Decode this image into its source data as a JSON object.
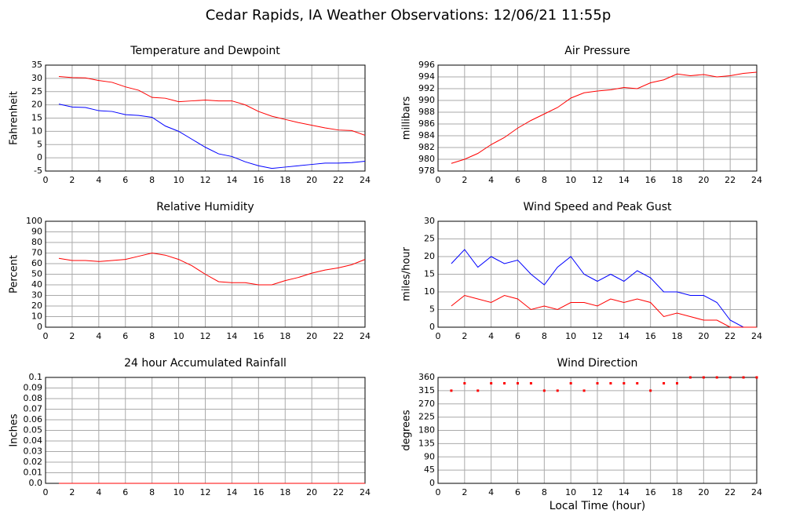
{
  "title": "Cedar Rapids, IA Weather Observations: 12/06/21 11:55p",
  "chart_data": [
    {
      "type": "line",
      "title": "Temperature and Dewpoint",
      "y_label": "Fahrenheit",
      "x": [
        1,
        2,
        3,
        4,
        5,
        6,
        7,
        8,
        9,
        10,
        11,
        12,
        13,
        14,
        15,
        16,
        17,
        18,
        19,
        20,
        21,
        22,
        23,
        24
      ],
      "series": [
        {
          "color": "#ff0000",
          "values": [
            30.7,
            30.3,
            30.2,
            29.2,
            28.5,
            26.8,
            25.5,
            22.8,
            22.5,
            21.2,
            21.5,
            21.8,
            21.5,
            21.5,
            20.0,
            17.5,
            15.7,
            14.5,
            13.3,
            12.3,
            11.3,
            10.5,
            10.3,
            8.5
          ]
        },
        {
          "color": "#0000ff",
          "values": [
            20.3,
            19.2,
            19.0,
            17.8,
            17.5,
            16.3,
            16.0,
            15.3,
            12.0,
            10.0,
            7.0,
            4.0,
            1.5,
            0.5,
            -1.5,
            -3.0,
            -4.0,
            -3.5,
            -3.0,
            -2.5,
            -2.0,
            -2.0,
            -1.8,
            -1.3
          ]
        }
      ],
      "xlim": [
        0,
        24
      ],
      "xticks": [
        0,
        2,
        4,
        6,
        8,
        10,
        12,
        14,
        16,
        18,
        20,
        22,
        24
      ],
      "ylim": [
        -5,
        35
      ],
      "yticks": [
        -5,
        0,
        5,
        10,
        15,
        20,
        25,
        30,
        35
      ],
      "grid": true
    },
    {
      "type": "line",
      "title": "Air Pressure",
      "y_label": "millibars",
      "x": [
        1,
        2,
        3,
        4,
        5,
        6,
        7,
        8,
        9,
        10,
        11,
        12,
        13,
        14,
        15,
        16,
        17,
        18,
        19,
        20,
        21,
        22,
        23,
        24
      ],
      "series": [
        {
          "color": "#ff0000",
          "values": [
            979.3,
            980.0,
            981.0,
            982.5,
            983.7,
            985.3,
            986.6,
            987.7,
            988.8,
            990.4,
            991.3,
            991.6,
            991.8,
            992.2,
            992.0,
            993.0,
            993.5,
            994.5,
            994.2,
            994.4,
            994.0,
            994.2,
            994.6,
            994.8
          ]
        }
      ],
      "xlim": [
        0,
        24
      ],
      "xticks": [
        0,
        2,
        4,
        6,
        8,
        10,
        12,
        14,
        16,
        18,
        20,
        22,
        24
      ],
      "ylim": [
        978,
        996
      ],
      "yticks": [
        978,
        980,
        982,
        984,
        986,
        988,
        990,
        992,
        994,
        996
      ],
      "grid": true
    },
    {
      "type": "line",
      "title": "Relative Humidity",
      "y_label": "Percent",
      "x": [
        1,
        2,
        3,
        4,
        5,
        6,
        7,
        8,
        9,
        10,
        11,
        12,
        13,
        14,
        15,
        16,
        17,
        18,
        19,
        20,
        21,
        22,
        23,
        24
      ],
      "series": [
        {
          "color": "#ff0000",
          "values": [
            65,
            63,
            63,
            62,
            63,
            64,
            67,
            70,
            68,
            64,
            58,
            50,
            43,
            42,
            42,
            40,
            40,
            44,
            47,
            51,
            54,
            56,
            59,
            64
          ]
        }
      ],
      "xlim": [
        0,
        24
      ],
      "xticks": [
        0,
        2,
        4,
        6,
        8,
        10,
        12,
        14,
        16,
        18,
        20,
        22,
        24
      ],
      "ylim": [
        0,
        100
      ],
      "yticks": [
        0,
        10,
        20,
        30,
        40,
        50,
        60,
        70,
        80,
        90,
        100
      ],
      "grid": true
    },
    {
      "type": "line",
      "title": "Wind Speed and Peak Gust",
      "y_label": "miles/hour",
      "x": [
        1,
        2,
        3,
        4,
        5,
        6,
        7,
        8,
        9,
        10,
        11,
        12,
        13,
        14,
        15,
        16,
        17,
        18,
        19,
        20,
        21,
        22,
        23,
        24
      ],
      "series": [
        {
          "color": "#0000ff",
          "values": [
            18,
            22,
            17,
            20,
            18,
            19,
            15,
            12,
            17,
            20,
            15,
            13,
            15,
            13,
            16,
            14,
            10,
            10,
            9,
            9,
            7,
            2,
            0,
            0
          ]
        },
        {
          "color": "#ff0000",
          "values": [
            6,
            9,
            8,
            7,
            9,
            8,
            5,
            6,
            5,
            7,
            7,
            6,
            8,
            7,
            8,
            7,
            3,
            4,
            3,
            2,
            2,
            0,
            0,
            0
          ]
        }
      ],
      "xlim": [
        0,
        24
      ],
      "xticks": [
        0,
        2,
        4,
        6,
        8,
        10,
        12,
        14,
        16,
        18,
        20,
        22,
        24
      ],
      "ylim": [
        0,
        30
      ],
      "yticks": [
        0,
        5,
        10,
        15,
        20,
        25,
        30
      ],
      "grid": true
    },
    {
      "type": "line",
      "title": "24 hour Accumulated Rainfall",
      "y_label": "Inches",
      "x": [
        1,
        24
      ],
      "series": [
        {
          "color": "#ff0000",
          "values": [
            0,
            0
          ]
        }
      ],
      "xlim": [
        0,
        24
      ],
      "xticks": [
        0,
        2,
        4,
        6,
        8,
        10,
        12,
        14,
        16,
        18,
        20,
        22,
        24
      ],
      "ylim": [
        0,
        0.1
      ],
      "yticks": [
        {
          "value": 0,
          "label": "0.0"
        },
        0.01,
        0.02,
        0.03,
        0.04,
        0.05,
        0.06,
        0.07,
        0.08,
        0.09,
        0.1
      ],
      "grid": true
    },
    {
      "type": "scatter",
      "title": "Wind Direction",
      "y_label": "degrees",
      "x_label": "Local Time (hour)",
      "x": [
        1,
        2,
        3,
        4,
        5,
        6,
        7,
        8,
        9,
        10,
        11,
        12,
        13,
        14,
        15,
        16,
        17,
        18,
        19,
        20,
        21,
        22,
        23,
        24
      ],
      "series": [
        {
          "color": "#ff0000",
          "values": [
            315,
            340,
            315,
            340,
            340,
            340,
            340,
            315,
            315,
            340,
            315,
            340,
            340,
            340,
            340,
            315,
            340,
            340,
            360,
            360,
            360,
            360,
            360,
            360
          ]
        }
      ],
      "xlim": [
        0,
        24
      ],
      "xticks": [
        0,
        2,
        4,
        6,
        8,
        10,
        12,
        14,
        16,
        18,
        20,
        22,
        24
      ],
      "ylim": [
        0,
        360
      ],
      "yticks": [
        0,
        45,
        90,
        135,
        180,
        225,
        270,
        315,
        360
      ],
      "grid": true
    }
  ]
}
